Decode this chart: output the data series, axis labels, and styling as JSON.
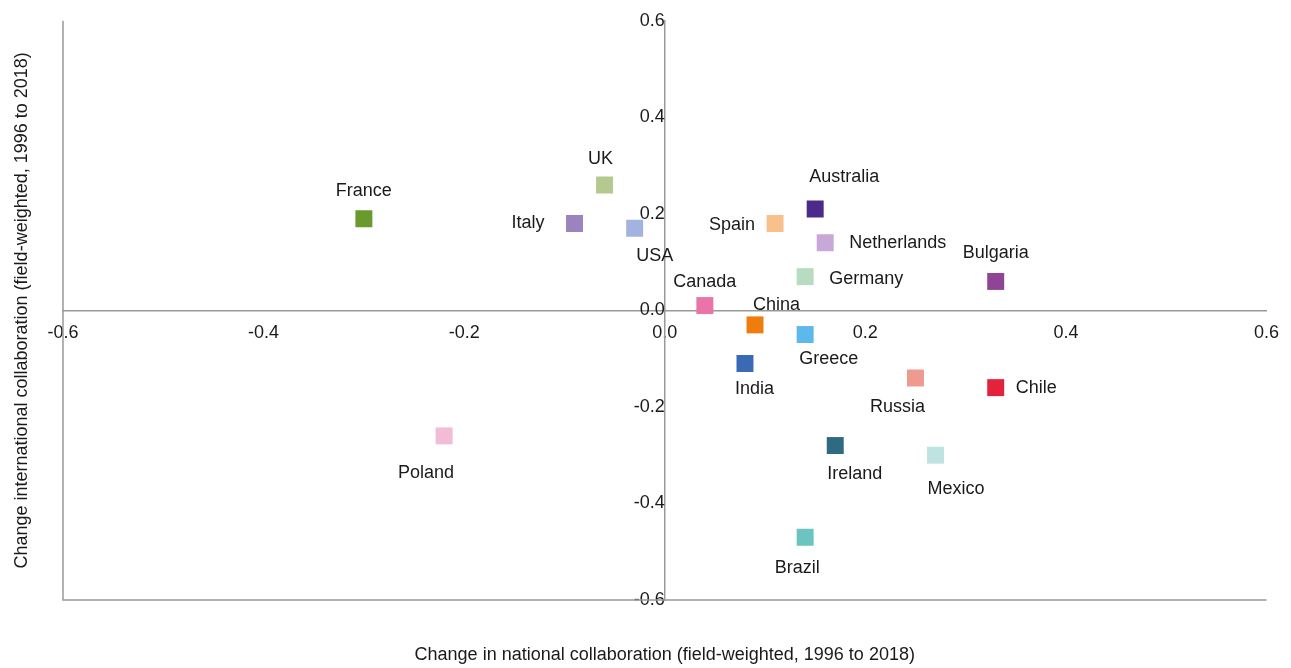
{
  "chart_data": {
    "type": "scatter",
    "xlabel": "Change in national collaboration (field-weighted, 1996 to 2018)",
    "ylabel": "Change international collaboration (field-weighted, 1996 to 2018)",
    "xlim": [
      -0.6,
      0.6
    ],
    "ylim": [
      -0.6,
      0.6
    ],
    "xticks": [
      -0.6,
      -0.4,
      -0.2,
      {
        "value": 0,
        "label": "0.0"
      },
      0.2,
      0.4,
      0.6
    ],
    "yticks": [
      -0.6,
      -0.4,
      -0.2,
      {
        "value": 0,
        "label": "0.0"
      },
      0.2,
      0.4,
      0.6
    ],
    "grid": false,
    "legend": false,
    "marker": "square",
    "series": [
      {
        "name": "France",
        "color": "#6a9a2e",
        "x": [
          -0.3
        ],
        "values": [
          0.19
        ]
      },
      {
        "name": "UK",
        "color": "#b5c98e",
        "x": [
          -0.06
        ],
        "values": [
          0.26
        ]
      },
      {
        "name": "Italy",
        "color": "#9b83bf",
        "x": [
          -0.09
        ],
        "values": [
          0.18
        ]
      },
      {
        "name": "USA",
        "color": "#a3b3e0",
        "x": [
          -0.03
        ],
        "values": [
          0.17
        ]
      },
      {
        "name": "Spain",
        "color": "#f8c08a",
        "x": [
          0.11
        ],
        "values": [
          0.18
        ]
      },
      {
        "name": "Australia",
        "color": "#4b2a8a",
        "x": [
          0.15
        ],
        "values": [
          0.21
        ]
      },
      {
        "name": "Netherlands",
        "color": "#c8a8d8",
        "x": [
          0.16
        ],
        "values": [
          0.14
        ]
      },
      {
        "name": "Germany",
        "color": "#b8dcc0",
        "x": [
          0.14
        ],
        "values": [
          0.07
        ]
      },
      {
        "name": "Bulgaria",
        "color": "#8f4596",
        "x": [
          0.33
        ],
        "values": [
          0.06
        ]
      },
      {
        "name": "Canada",
        "color": "#e874a8",
        "x": [
          0.04
        ],
        "values": [
          0.01
        ]
      },
      {
        "name": "China",
        "color": "#ef7d0e",
        "x": [
          0.09
        ],
        "values": [
          -0.03
        ]
      },
      {
        "name": "Greece",
        "color": "#5db8ec",
        "x": [
          0.14
        ],
        "values": [
          -0.05
        ]
      },
      {
        "name": "India",
        "color": "#3b6ab5",
        "x": [
          0.08
        ],
        "values": [
          -0.11
        ]
      },
      {
        "name": "Russia",
        "color": "#ef9a8f",
        "x": [
          0.25
        ],
        "values": [
          -0.14
        ]
      },
      {
        "name": "Chile",
        "color": "#e3223c",
        "x": [
          0.33
        ],
        "values": [
          -0.16
        ]
      },
      {
        "name": "Poland",
        "color": "#f2bcd6",
        "x": [
          -0.22
        ],
        "values": [
          -0.26
        ]
      },
      {
        "name": "Ireland",
        "color": "#2e6b82",
        "x": [
          0.17
        ],
        "values": [
          -0.28
        ]
      },
      {
        "name": "Mexico",
        "color": "#bfe3e0",
        "x": [
          0.27
        ],
        "values": [
          -0.3
        ]
      },
      {
        "name": "Brazil",
        "color": "#6cc4c0",
        "x": [
          0.14
        ],
        "values": [
          -0.47
        ]
      }
    ]
  }
}
